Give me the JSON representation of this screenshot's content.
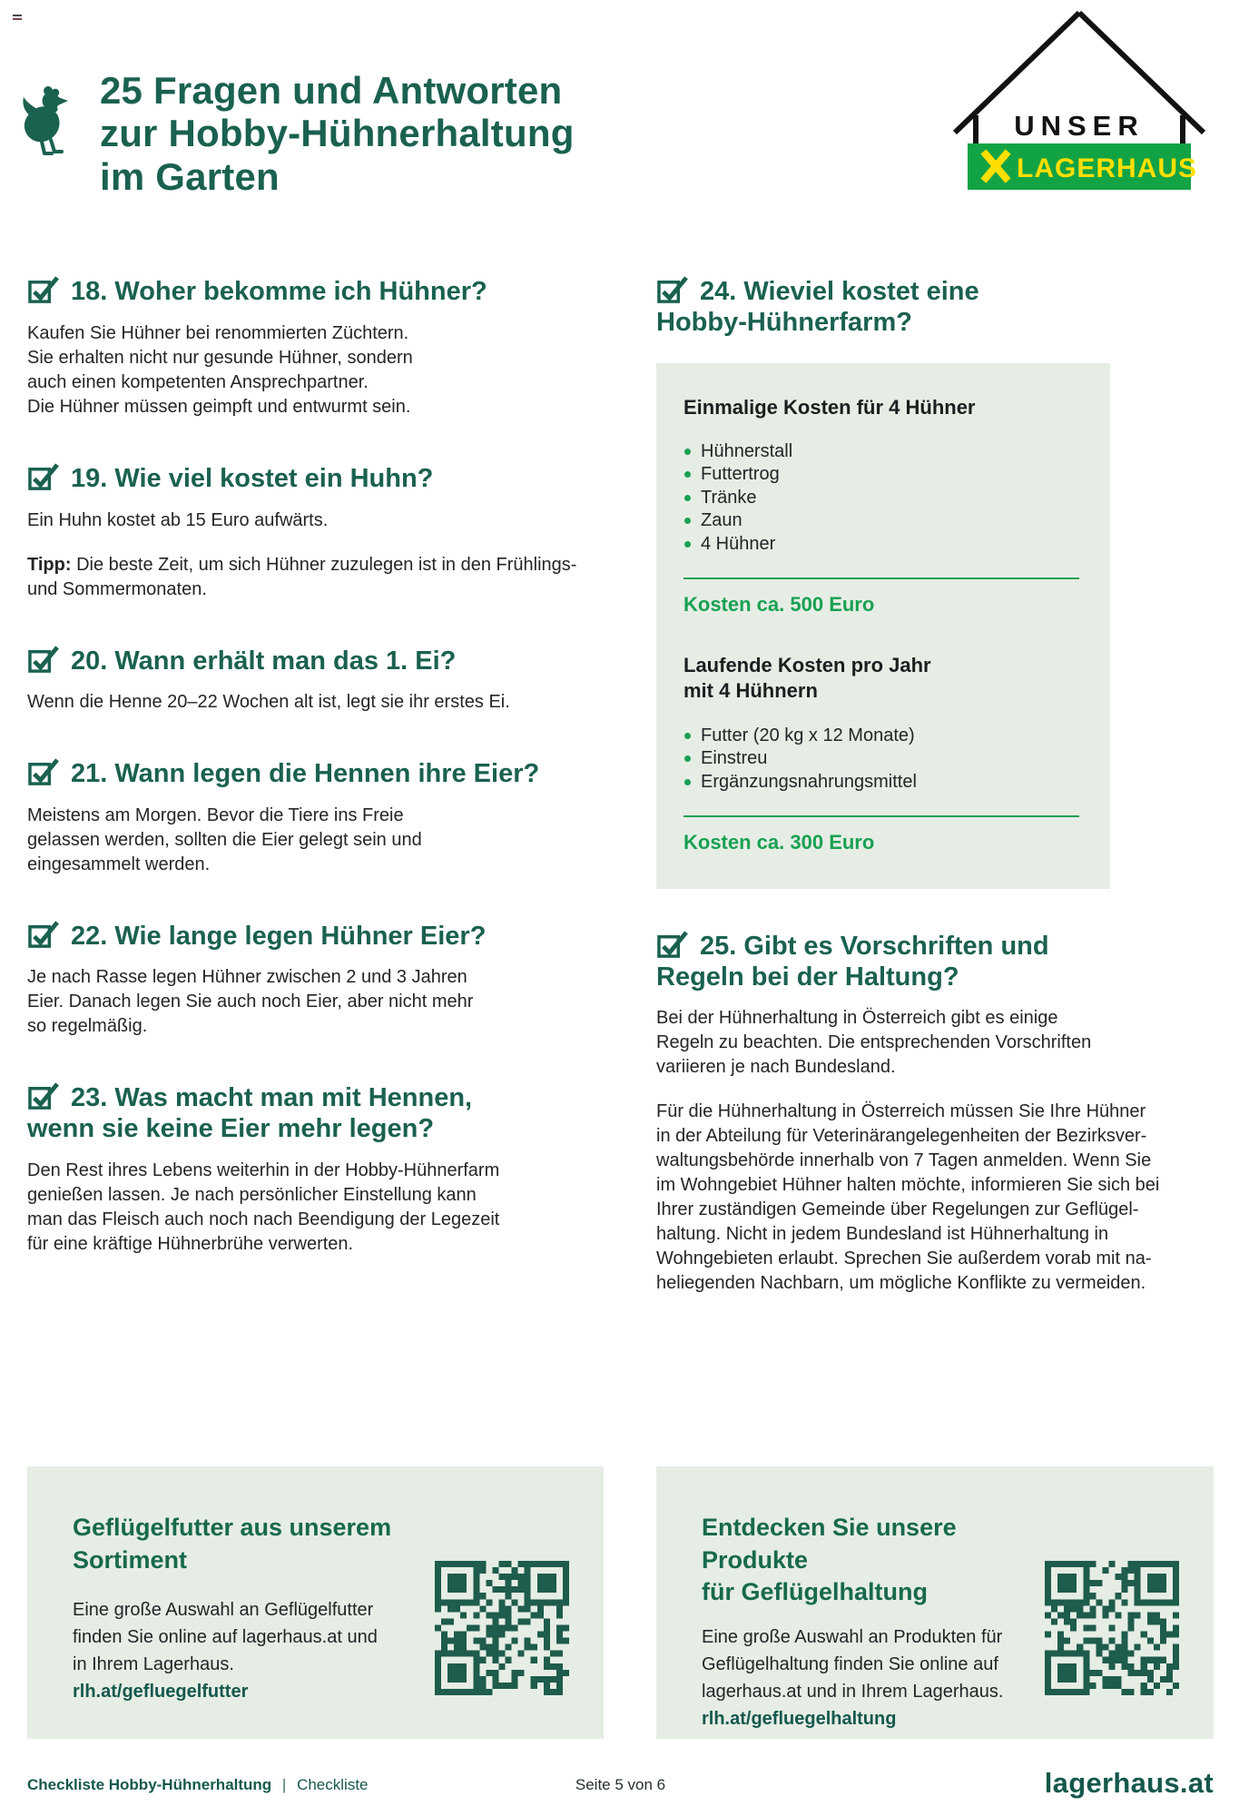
{
  "colors": {
    "heading_green": "#1a6150",
    "accent_green": "#18a152",
    "bar_green": "#12a344",
    "logo_yellow": "#ffdf00",
    "box_bg": "#e6ede5",
    "body_text": "#232527",
    "qr_green": "#1e5c4b",
    "footer_green": "#14584c"
  },
  "header": {
    "title_lines": [
      "25 Fragen und Antworten",
      "zur Hobby-Hühnerhaltung",
      "im Garten"
    ]
  },
  "logo": {
    "upper": "UNSER",
    "brand": "LAGERHAUS"
  },
  "qa_left": [
    {
      "heading": "18. Woher bekomme ich Hühner?",
      "body_lines": [
        "Kaufen Sie Hühner bei renommierten Züchtern.",
        "Sie erhalten nicht nur gesunde Hühner, sondern",
        "auch einen kompetenten Ansprechpartner.",
        "Die Hühner müssen geimpft und entwurmt sein."
      ]
    },
    {
      "heading": "19. Wie viel kostet ein Huhn?",
      "body_lines": [
        "Ein Huhn kostet ab 15 Euro aufwärts."
      ],
      "tip_label": "Tipp:",
      "tip_text": "Die beste Zeit, um sich Hühner zuzulegen ist in den Frühlings- und Sommermonaten."
    },
    {
      "heading": "20. Wann erhält man das 1. Ei?",
      "body_lines": [
        "Wenn die Henne 20–22 Wochen alt ist, legt sie ihr erstes Ei."
      ]
    },
    {
      "heading": "21. Wann legen die Hennen ihre Eier?",
      "body_lines": [
        "Meistens am Morgen. Bevor die Tiere ins Freie",
        "gelassen werden, sollten die Eier gelegt sein und",
        "eingesammelt werden."
      ]
    },
    {
      "heading": "22. Wie lange legen Hühner Eier?",
      "body_lines": [
        "Je nach Rasse legen Hühner zwischen 2 und 3 Jahren",
        "Eier. Danach legen Sie auch noch Eier, aber nicht mehr",
        "so regelmäßig."
      ]
    },
    {
      "heading_lines": [
        "23. Was macht man mit Hennen,",
        "wenn sie keine Eier mehr legen?"
      ],
      "body_lines": [
        "Den Rest ihres Lebens weiterhin in der Hobby-Hühnerfarm",
        "genießen lassen. Je nach persönlicher Einstellung kann",
        "man das Fleisch auch noch nach Beendigung der Legezeit",
        "für eine kräftige Hühnerbrühe verwerten."
      ]
    }
  ],
  "qa_right": {
    "q24": {
      "heading_lines": [
        "24. Wieviel kostet eine",
        "Hobby-Hühnerfarm?"
      ]
    },
    "cost_box": {
      "once": {
        "title": "Einmalige Kosten für 4 Hühner",
        "items": [
          "Hühnerstall",
          "Futtertrog",
          "Tränke",
          "Zaun",
          "4 Hühner"
        ],
        "total": "Kosten ca. 500 Euro"
      },
      "running": {
        "title_lines": [
          "Laufende Kosten pro Jahr",
          "mit 4 Hühnern"
        ],
        "items": [
          "Futter (20 kg x 12 Monate)",
          "Einstreu",
          "Ergänzungsnahrungsmittel"
        ],
        "total": "Kosten ca. 300 Euro"
      }
    },
    "q25": {
      "heading_lines": [
        "25. Gibt es Vorschriften und",
        "Regeln bei der Haltung?"
      ],
      "p1_lines": [
        "Bei der Hühnerhaltung in Österreich gibt es einige",
        "Regeln zu beachten. Die entsprechenden Vorschriften",
        "variieren je nach Bundesland."
      ],
      "p2_lines": [
        "Für die Hühnerhaltung in Österreich müssen Sie Ihre Hühner",
        "in der Abteilung für Veterinärangelegenheiten der Bezirksver-",
        "waltungsbehörde innerhalb von 7 Tagen anmelden. Wenn Sie",
        "im Wohngebiet Hühner halten möchte, informieren Sie sich bei",
        "Ihrer zuständigen Gemeinde über Regelungen zur Geflügel-",
        "haltung. Nicht in jedem Bundesland ist Hühnerhaltung in",
        "Wohngebieten erlaubt. Sprechen Sie außerdem vorab mit na-",
        "heliegenden Nachbarn, um mögliche Konflikte zu vermeiden."
      ]
    }
  },
  "promos": {
    "left": {
      "title": "Geflügelfutter aus unserem Sortiment",
      "body_lines": [
        "Eine große Auswahl an Geflügelfutter",
        "finden Sie online auf lagerhaus.at und",
        "in Ihrem Lagerhaus."
      ],
      "link": "rlh.at/gefluegelfutter"
    },
    "right": {
      "title_lines": [
        "Entdecken Sie unsere Produkte",
        "für Geflügelhaltung"
      ],
      "body_lines": [
        "Eine große Auswahl an Produkten für",
        "Geflügelhaltung finden Sie online auf",
        "lagerhaus.at und in Ihrem Lagerhaus."
      ],
      "link": "rlh.at/gefluegelhaltung"
    }
  },
  "footer": {
    "doc_title": "Checkliste Hobby-Hühnerhaltung",
    "separator": "|",
    "doc_sub": "Checkliste",
    "page": "Seite 5 von 6",
    "brand": "lagerhaus.at"
  }
}
